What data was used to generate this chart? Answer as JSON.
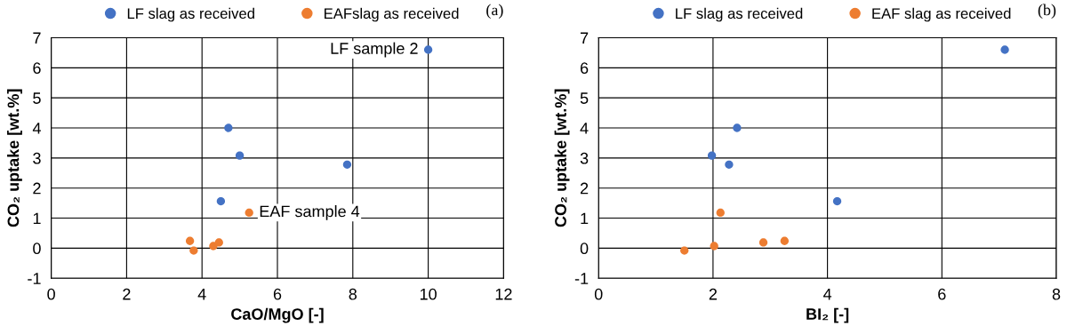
{
  "chart_data": [
    {
      "type": "scatter",
      "xlabel": "CaO/MgO [-]",
      "ylabel": "CO₂ uptake [wt.%]",
      "xlim": [
        0,
        12
      ],
      "xticks": [
        0,
        2,
        4,
        6,
        8,
        10,
        12
      ],
      "ylim": [
        -1,
        7
      ],
      "yticks": [
        -1,
        0,
        1,
        2,
        3,
        4,
        5,
        6,
        7
      ],
      "grid": true,
      "legend": "top",
      "marker": "circle",
      "series": [
        {
          "name": "LF slag as received",
          "color": "#4472c4",
          "x": [
            10.0,
            4.7,
            5.0,
            7.85,
            4.5
          ],
          "values": [
            6.6,
            4.0,
            3.08,
            2.78,
            1.56
          ]
        },
        {
          "name": "EAFslag as received",
          "color": "#ed7d31",
          "x": [
            5.25,
            3.68,
            3.78,
            4.3,
            4.45
          ],
          "values": [
            1.18,
            0.24,
            -0.08,
            0.07,
            0.19
          ]
        }
      ],
      "annotations": [
        {
          "text": "LF sample 2",
          "x": 10.0,
          "y": 6.6
        },
        {
          "text": "EAF sample 4",
          "x": 5.25,
          "y": 1.18
        },
        "(a)"
      ]
    },
    {
      "type": "scatter",
      "xlabel": "BI₂ [-]",
      "ylabel": "CO₂ uptake [wt.%]",
      "xlim": [
        0,
        8
      ],
      "xticks": [
        0,
        2,
        4,
        6,
        8
      ],
      "ylim": [
        -1,
        7
      ],
      "yticks": [
        -1,
        0,
        1,
        2,
        3,
        4,
        5,
        6,
        7
      ],
      "grid": true,
      "legend": "top",
      "marker": "circle",
      "series": [
        {
          "name": "LF slag as received",
          "color": "#4472c4",
          "x": [
            7.1,
            2.42,
            1.98,
            2.28,
            4.17
          ],
          "values": [
            6.6,
            4.0,
            3.08,
            2.78,
            1.56
          ]
        },
        {
          "name": "EAF slag as received",
          "color": "#ed7d31",
          "x": [
            2.13,
            3.25,
            1.5,
            2.02,
            2.88
          ],
          "values": [
            1.18,
            0.24,
            -0.08,
            0.07,
            0.19
          ]
        }
      ],
      "annotations": [
        "(b)"
      ]
    }
  ]
}
